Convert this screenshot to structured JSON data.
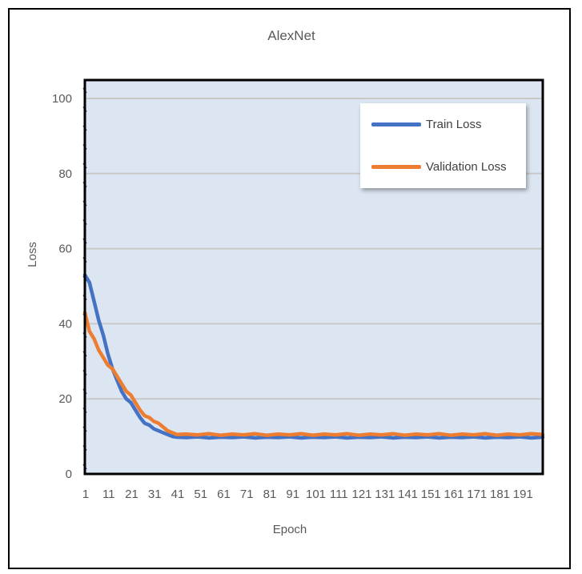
{
  "chart_data": {
    "type": "line",
    "title": "AlexNet",
    "xlabel": "Epoch",
    "ylabel": "Loss",
    "ylim": [
      0,
      100
    ],
    "yticks": [
      0,
      20,
      40,
      60,
      80,
      100
    ],
    "x_range": [
      1,
      200
    ],
    "xtick_labels": [
      "1",
      "11",
      "21",
      "31",
      "41",
      "51",
      "61",
      "71",
      "81",
      "91",
      "101",
      "111",
      "121",
      "131",
      "141",
      "151",
      "161",
      "171",
      "181",
      "191"
    ],
    "grid": "horizontal",
    "legend_position": "top-right",
    "plot_background": "#dce6f2",
    "series": [
      {
        "name": "Train Loss",
        "color": "#4472c4",
        "x": [
          1,
          3,
          5,
          7,
          9,
          11,
          13,
          15,
          17,
          19,
          21,
          23,
          25,
          27,
          29,
          31,
          33,
          35,
          37,
          39,
          41,
          45,
          50,
          55,
          60,
          65,
          70,
          75,
          80,
          85,
          90,
          95,
          100,
          105,
          110,
          115,
          120,
          125,
          130,
          135,
          140,
          145,
          150,
          155,
          160,
          165,
          170,
          175,
          180,
          185,
          190,
          195,
          200
        ],
        "values": [
          53,
          51,
          46,
          41,
          37,
          32,
          28,
          25,
          22,
          20,
          19,
          17,
          15,
          13.5,
          13,
          12,
          11.5,
          11,
          10.5,
          10,
          9.8,
          9.7,
          9.9,
          9.6,
          9.8,
          9.7,
          9.9,
          9.6,
          9.8,
          9.7,
          9.9,
          9.6,
          9.8,
          9.7,
          9.9,
          9.6,
          9.8,
          9.7,
          9.9,
          9.6,
          9.8,
          9.7,
          9.9,
          9.6,
          9.8,
          9.7,
          9.9,
          9.6,
          9.8,
          9.7,
          9.9,
          9.6,
          9.8
        ]
      },
      {
        "name": "Validation Loss",
        "color": "#ed7d31",
        "x": [
          1,
          3,
          5,
          7,
          9,
          11,
          13,
          15,
          17,
          19,
          21,
          23,
          25,
          27,
          29,
          31,
          33,
          35,
          37,
          39,
          41,
          45,
          50,
          55,
          60,
          65,
          70,
          75,
          80,
          85,
          90,
          95,
          100,
          105,
          110,
          115,
          120,
          125,
          130,
          135,
          140,
          145,
          150,
          155,
          160,
          165,
          170,
          175,
          180,
          185,
          190,
          195,
          200
        ],
        "values": [
          43,
          38,
          36,
          33,
          31,
          29,
          28,
          26,
          24,
          22,
          21,
          19,
          17,
          15.5,
          15,
          14,
          13.5,
          12.5,
          11.5,
          11,
          10.5,
          10.6,
          10.4,
          10.7,
          10.3,
          10.6,
          10.4,
          10.7,
          10.3,
          10.6,
          10.4,
          10.7,
          10.3,
          10.6,
          10.4,
          10.7,
          10.3,
          10.6,
          10.4,
          10.7,
          10.3,
          10.6,
          10.4,
          10.7,
          10.3,
          10.6,
          10.4,
          10.7,
          10.3,
          10.6,
          10.4,
          10.7,
          10.5
        ]
      }
    ]
  }
}
